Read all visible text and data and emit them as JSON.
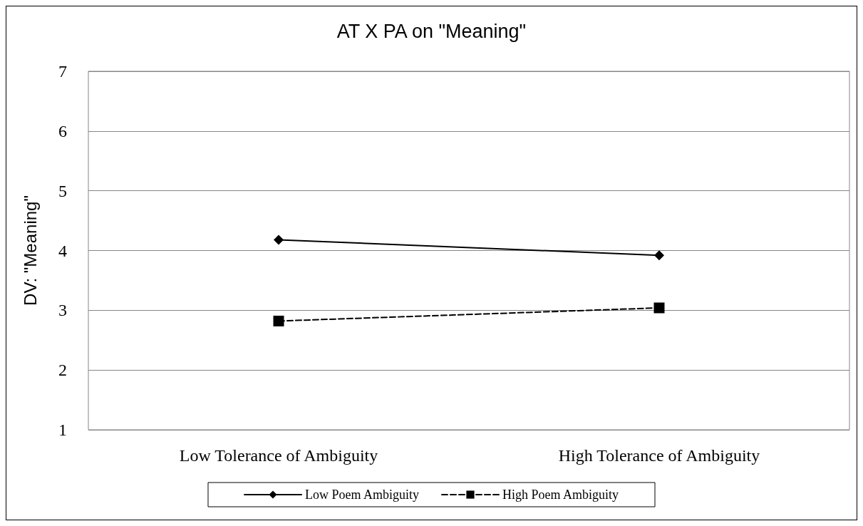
{
  "chart_data": {
    "type": "line",
    "title": "AT X PA on \"Meaning\"",
    "ylabel": "DV: \"Meaning\"",
    "categories": [
      "Low Tolerance of Ambiguity",
      "High Tolerance of Ambiguity"
    ],
    "series": [
      {
        "name": "Low Poem Ambiguity",
        "color": "#000000",
        "values": [
          4.18,
          3.92
        ],
        "marker": "diamond",
        "line_style": "solid"
      },
      {
        "name": "High Poem Ambiguity",
        "color": "#000000",
        "values": [
          2.82,
          3.04
        ],
        "marker": "square",
        "line_style": "dashed"
      }
    ],
    "ylim": [
      1,
      7
    ],
    "yticks": [
      1,
      2,
      3,
      4,
      5,
      6,
      7
    ],
    "grid": "y",
    "legend": "bottom"
  }
}
